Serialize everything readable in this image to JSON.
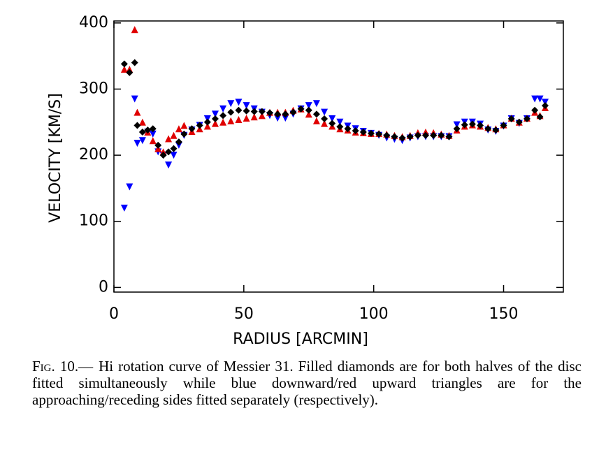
{
  "chart_data": {
    "type": "scatter",
    "xlabel": "RADIUS [ARCMIN]",
    "ylabel": "VELOCITY [KM/S]",
    "xlim": [
      0,
      173
    ],
    "ylim": [
      -7,
      403
    ],
    "xticks": [
      0,
      50,
      100,
      150
    ],
    "yticks": [
      0,
      100,
      200,
      300,
      400
    ],
    "x": [
      4,
      6,
      8,
      9,
      11,
      13,
      15,
      17,
      19,
      21,
      23,
      25,
      27,
      30,
      33,
      36,
      39,
      42,
      45,
      48,
      51,
      54,
      57,
      60,
      63,
      66,
      69,
      72,
      75,
      78,
      81,
      84,
      87,
      90,
      93,
      96,
      99,
      102,
      105,
      108,
      111,
      114,
      117,
      120,
      123,
      126,
      129,
      132,
      135,
      138,
      141,
      144,
      147,
      150,
      153,
      156,
      159,
      162,
      164,
      166
    ],
    "series": [
      {
        "color": "#0000ff",
        "marker": "triangle-down",
        "values": [
          120,
          152,
          285,
          218,
          222,
          235,
          232,
          205,
          200,
          185,
          200,
          215,
          230,
          238,
          245,
          255,
          262,
          270,
          278,
          280,
          275,
          270,
          265,
          260,
          256,
          256,
          262,
          270,
          275,
          278,
          265,
          255,
          250,
          244,
          240,
          236,
          233,
          230,
          226,
          224,
          222,
          226,
          228,
          228,
          228,
          228,
          228,
          246,
          250,
          250,
          247,
          238,
          236,
          244,
          255,
          248,
          255,
          285,
          285,
          280
        ]
      },
      {
        "color": "#e00000",
        "marker": "triangle-up",
        "values": [
          330,
          330,
          390,
          265,
          250,
          235,
          222,
          210,
          205,
          225,
          230,
          240,
          245,
          236,
          240,
          244,
          248,
          250,
          252,
          254,
          256,
          258,
          260,
          265,
          265,
          265,
          268,
          270,
          262,
          252,
          248,
          244,
          240,
          238,
          235,
          234,
          233,
          233,
          232,
          230,
          228,
          230,
          234,
          235,
          234,
          232,
          230,
          238,
          244,
          246,
          244,
          242,
          240,
          246,
          256,
          250,
          256,
          265,
          260,
          272
        ]
      },
      {
        "color": "#000000",
        "marker": "diamond",
        "values": [
          338,
          325,
          340,
          245,
          235,
          238,
          240,
          215,
          200,
          205,
          210,
          220,
          232,
          240,
          245,
          250,
          255,
          260,
          265,
          268,
          267,
          266,
          266,
          264,
          262,
          262,
          265,
          270,
          268,
          262,
          255,
          248,
          243,
          240,
          237,
          235,
          233,
          232,
          230,
          228,
          226,
          228,
          230,
          230,
          230,
          230,
          228,
          240,
          246,
          247,
          245,
          240,
          238,
          245,
          255,
          250,
          255,
          268,
          258,
          275
        ]
      }
    ]
  },
  "caption": {
    "label": "Fig. 10.—",
    "text": "Hi rotation curve of Messier 31. Filled diamonds are for both halves of the disc fitted simultaneously while blue downward/red upward triangles are for the approaching/receding sides fitted separately (respectively)."
  }
}
